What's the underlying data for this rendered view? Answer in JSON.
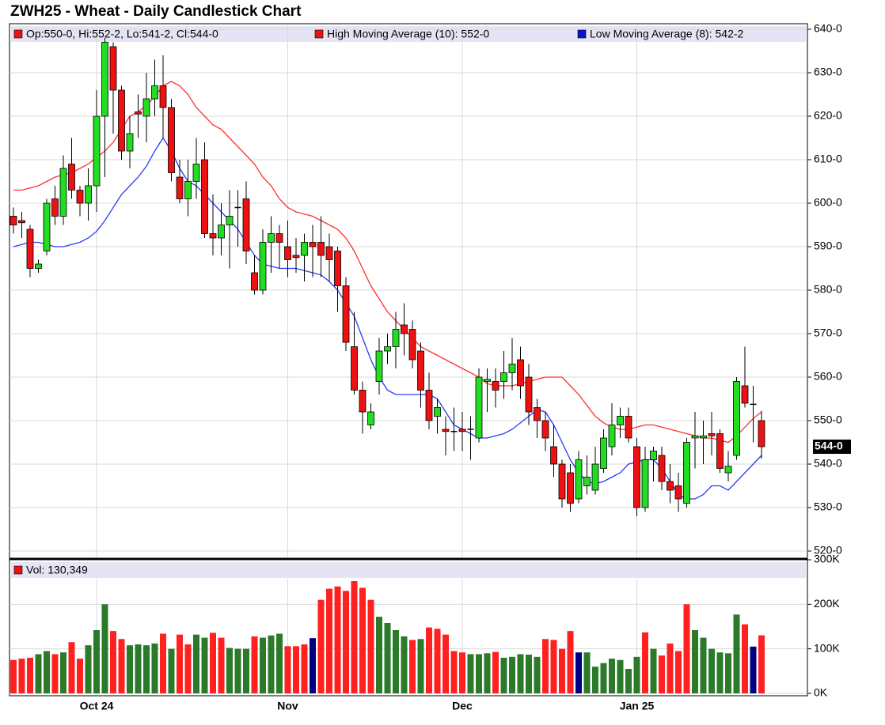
{
  "chart_data": {
    "type": "candlestick",
    "title": "ZWH25 - Wheat - Daily Candlestick Chart",
    "legend": [
      {
        "text": "Op:550-0, Hi:552-2, Lo:541-2, Cl:544-0",
        "color": "#ee1111"
      },
      {
        "text": "High Moving Average (10): 552-0",
        "color": "#ee1111"
      },
      {
        "text": "Low Moving Average (8): 542-2",
        "color": "#1010cc"
      }
    ],
    "up_color": "#22dd22",
    "down_color": "#ee1111",
    "categories": [
      null,
      null,
      null,
      null,
      null,
      null,
      null,
      null,
      null,
      null,
      "Oct 24",
      null,
      null,
      null,
      null,
      null,
      null,
      null,
      null,
      null,
      null,
      null,
      null,
      null,
      null,
      null,
      null,
      null,
      null,
      null,
      null,
      null,
      null,
      "Nov",
      null,
      null,
      null,
      null,
      null,
      null,
      null,
      null,
      null,
      null,
      null,
      null,
      null,
      null,
      null,
      null,
      null,
      null,
      null,
      null,
      "Dec",
      null,
      null,
      null,
      null,
      null,
      null,
      null,
      null,
      null,
      null,
      null,
      null,
      null,
      null,
      null,
      null,
      null,
      null,
      null,
      null,
      "Jan 25",
      null,
      null,
      null,
      null,
      null,
      null,
      null,
      null,
      null,
      null,
      null,
      null,
      null,
      null,
      null
    ],
    "open": [
      597,
      596,
      594,
      585,
      589,
      601,
      597,
      609,
      603,
      600,
      604,
      620,
      636,
      626,
      612,
      621,
      620,
      624,
      627,
      622,
      606,
      601,
      605,
      610,
      593,
      592,
      595,
      599,
      601,
      584,
      580,
      591,
      593,
      590,
      588,
      588,
      591,
      591,
      590,
      589,
      581,
      567,
      557,
      549,
      559,
      566,
      567,
      572,
      571,
      566,
      557,
      551,
      548,
      547.5,
      548,
      548,
      546,
      559,
      559,
      559,
      561,
      564,
      560,
      553,
      550,
      544,
      540,
      538,
      532,
      535,
      534,
      539,
      544,
      549,
      551,
      544,
      530,
      541,
      542,
      536,
      535,
      531,
      546,
      546,
      547,
      547,
      538,
      542,
      558,
      553.75,
      550
    ],
    "high": [
      599,
      598,
      595,
      587,
      601,
      604,
      611,
      615,
      604,
      608,
      626,
      638,
      637,
      627,
      620,
      625,
      630,
      633,
      634,
      624,
      610,
      610,
      615,
      614,
      602,
      600,
      603,
      603,
      605,
      588,
      594,
      597,
      595,
      596,
      592,
      593,
      595,
      597,
      593,
      590,
      583,
      575,
      559,
      554,
      569,
      570,
      575,
      577,
      573,
      568,
      561,
      555,
      551,
      553,
      552,
      551,
      562,
      562,
      562,
      566,
      569,
      567,
      563,
      555,
      552,
      549,
      541,
      540,
      543,
      542,
      544,
      548,
      554,
      553,
      553,
      546,
      544,
      544,
      544,
      540,
      538,
      546,
      552,
      550,
      552,
      548,
      543,
      560,
      567,
      558,
      552.25
    ],
    "low": [
      593,
      592,
      583,
      584,
      588,
      595,
      595,
      601,
      597,
      596,
      598,
      606,
      616,
      610,
      608,
      615,
      614,
      620,
      615,
      605,
      600,
      597,
      601,
      592,
      588,
      588,
      585,
      590,
      586,
      579,
      579,
      584,
      585,
      583,
      584,
      582,
      583,
      583,
      582,
      575,
      566,
      556,
      547,
      548,
      556,
      563,
      562,
      565,
      562,
      553,
      548,
      547,
      542,
      543,
      543,
      541,
      545,
      552,
      553,
      555,
      557,
      555,
      549,
      546,
      543,
      537,
      530,
      529,
      531,
      533,
      533,
      538,
      542,
      546,
      545,
      528,
      529,
      536,
      534,
      531,
      529,
      530,
      539,
      540,
      542,
      538,
      536,
      541,
      553,
      545,
      541.25
    ],
    "close": [
      595,
      595.5,
      585,
      586,
      600,
      597,
      608,
      603,
      600,
      604,
      620,
      637,
      626,
      612,
      616,
      620.5,
      624,
      627,
      622,
      607,
      601,
      605,
      609,
      593,
      592,
      595,
      597,
      599,
      589,
      580,
      591,
      593,
      591,
      587,
      587.5,
      591,
      590,
      588,
      587,
      581,
      568,
      557,
      552,
      552,
      566,
      567,
      571,
      570,
      564,
      557,
      550,
      553,
      547.5,
      547.5,
      547.5,
      548,
      560,
      559.5,
      557,
      561,
      563,
      558,
      552,
      550,
      546,
      540,
      532,
      531,
      541,
      537,
      540,
      546,
      549,
      551,
      546,
      530,
      541,
      543,
      536,
      534,
      532,
      545,
      546.5,
      546.5,
      546.5,
      539,
      539.5,
      559,
      554,
      553.75,
      544
    ],
    "series": [
      {
        "color": "#ff3030",
        "values": [
          603,
          603,
          603.5,
          604,
          605,
          606,
          606.5,
          607,
          608,
          609,
          610.5,
          612,
          614,
          617,
          620,
          621,
          622.5,
          624.5,
          627,
          628,
          627,
          625,
          622,
          620,
          618,
          617,
          615,
          613,
          611,
          609,
          606,
          604,
          601,
          599,
          598,
          597.5,
          597,
          596,
          595,
          594,
          592,
          589,
          585,
          581,
          578,
          575,
          573,
          571,
          569,
          567,
          566,
          565,
          564,
          563,
          562,
          561,
          560,
          558.5,
          558,
          558,
          558,
          558.5,
          559,
          559.5,
          560,
          560,
          560,
          558,
          556,
          553.5,
          551,
          549.5,
          548.5,
          548,
          548,
          548.5,
          549,
          549,
          548.5,
          548,
          547.5,
          547,
          546.5,
          546,
          546,
          545.5,
          545,
          546.5,
          548.5,
          550.5,
          552
        ]
      },
      {
        "color": "#2a3cf0",
        "values": [
          590,
          590.5,
          591,
          591,
          590.5,
          590,
          590,
          590.5,
          591,
          592,
          593.5,
          596,
          599,
          602,
          604,
          606,
          608.5,
          612,
          615,
          612,
          608,
          605,
          604,
          602,
          600,
          598,
          596,
          594,
          591,
          588,
          586,
          585.5,
          585,
          585,
          585,
          584.5,
          584,
          583.5,
          582,
          580,
          577,
          574,
          569,
          564,
          560,
          557,
          556,
          556,
          556,
          556,
          556,
          555,
          552,
          549,
          548,
          547,
          546,
          546,
          546.5,
          547,
          548,
          549.5,
          551,
          552.5,
          552,
          549,
          545,
          541,
          538,
          536,
          535.5,
          536,
          537,
          538,
          540,
          540.5,
          541,
          541,
          539,
          536,
          533,
          532,
          532,
          533,
          535,
          535,
          534,
          536,
          538,
          540,
          542
        ]
      }
    ],
    "ylim": [
      520,
      640
    ],
    "yticks": [
      {
        "value": 520,
        "label": "520-0"
      },
      {
        "value": 530,
        "label": "530-0"
      },
      {
        "value": 540,
        "label": "540-0"
      },
      {
        "value": 550,
        "label": "550-0"
      },
      {
        "value": 560,
        "label": "560-0"
      },
      {
        "value": 570,
        "label": "570-0"
      },
      {
        "value": 580,
        "label": "580-0"
      },
      {
        "value": 590,
        "label": "590-0"
      },
      {
        "value": 600,
        "label": "600-0"
      },
      {
        "value": 610,
        "label": "610-0"
      },
      {
        "value": 620,
        "label": "620-0"
      },
      {
        "value": 630,
        "label": "630-0"
      },
      {
        "value": 640,
        "label": "640-0"
      }
    ],
    "last_price": {
      "value": 544,
      "label": "544-0"
    },
    "volume": {
      "legend": "Vol: 130,349",
      "legend_color": "#ee1111",
      "values": [
        75000,
        78000,
        80000,
        88000,
        95000,
        88000,
        92000,
        115000,
        78000,
        108000,
        142000,
        200000,
        140000,
        122000,
        108000,
        110000,
        108000,
        112000,
        134000,
        100000,
        132000,
        110000,
        132000,
        125000,
        136000,
        125000,
        102000,
        100000,
        100000,
        128000,
        125000,
        130000,
        134000,
        106000,
        106000,
        110000,
        124000,
        210000,
        235000,
        240000,
        230000,
        252000,
        237000,
        210000,
        172000,
        158000,
        142000,
        128000,
        120000,
        122000,
        148000,
        145000,
        132000,
        95000,
        92000,
        88000,
        88000,
        90000,
        93000,
        80000,
        82000,
        88000,
        87000,
        82000,
        122000,
        120000,
        100000,
        140000,
        92000,
        92000,
        60000,
        68000,
        78000,
        75000,
        55000,
        82000,
        137000,
        100000,
        85000,
        112000,
        95000,
        200000,
        142000,
        125000,
        100000,
        92000,
        90000,
        177000,
        155000,
        105000,
        130349
      ],
      "colors": [
        "#ff2020",
        "#ff2020",
        "#ff2020",
        "#2a7a2a",
        "#2a7a2a",
        "#ff2020",
        "#2a7a2a",
        "#ff2020",
        "#ff2020",
        "#2a7a2a",
        "#2a7a2a",
        "#2a7a2a",
        "#ff2020",
        "#ff2020",
        "#2a7a2a",
        "#2a7a2a",
        "#2a7a2a",
        "#2a7a2a",
        "#ff2020",
        "#2a7a2a",
        "#ff2020",
        "#ff2020",
        "#2a7a2a",
        "#2a7a2a",
        "#ff2020",
        "#ff2020",
        "#2a7a2a",
        "#2a7a2a",
        "#2a7a2a",
        "#ff2020",
        "#2a7a2a",
        "#2a7a2a",
        "#2a7a2a",
        "#ff2020",
        "#ff2020",
        "#ff2020",
        "#000080",
        "#ff2020",
        "#ff2020",
        "#ff2020",
        "#ff2020",
        "#ff2020",
        "#ff2020",
        "#ff2020",
        "#2a7a2a",
        "#2a7a2a",
        "#2a7a2a",
        "#2a7a2a",
        "#ff2020",
        "#2a7a2a",
        "#ff2020",
        "#ff2020",
        "#ff2020",
        "#ff2020",
        "#ff2020",
        "#2a7a2a",
        "#2a7a2a",
        "#2a7a2a",
        "#ff2020",
        "#2a7a2a",
        "#2a7a2a",
        "#2a7a2a",
        "#2a7a2a",
        "#2a7a2a",
        "#ff2020",
        "#ff2020",
        "#ff2020",
        "#ff2020",
        "#000080",
        "#2a7a2a",
        "#2a7a2a",
        "#2a7a2a",
        "#2a7a2a",
        "#2a7a2a",
        "#2a7a2a",
        "#2a7a2a",
        "#ff2020",
        "#2a7a2a",
        "#ff2020",
        "#ff2020",
        "#ff2020",
        "#ff2020",
        "#2a7a2a",
        "#2a7a2a",
        "#2a7a2a",
        "#2a7a2a",
        "#2a7a2a",
        "#2a7a2a",
        "#ff2020",
        "#000080",
        "#ff2020"
      ],
      "ylim": [
        0,
        300000
      ],
      "yticks": [
        {
          "value": 0,
          "label": "0K"
        },
        {
          "value": 100000,
          "label": "100K"
        },
        {
          "value": 200000,
          "label": "200K"
        },
        {
          "value": 300000,
          "label": "300K"
        }
      ]
    },
    "grid": true
  }
}
